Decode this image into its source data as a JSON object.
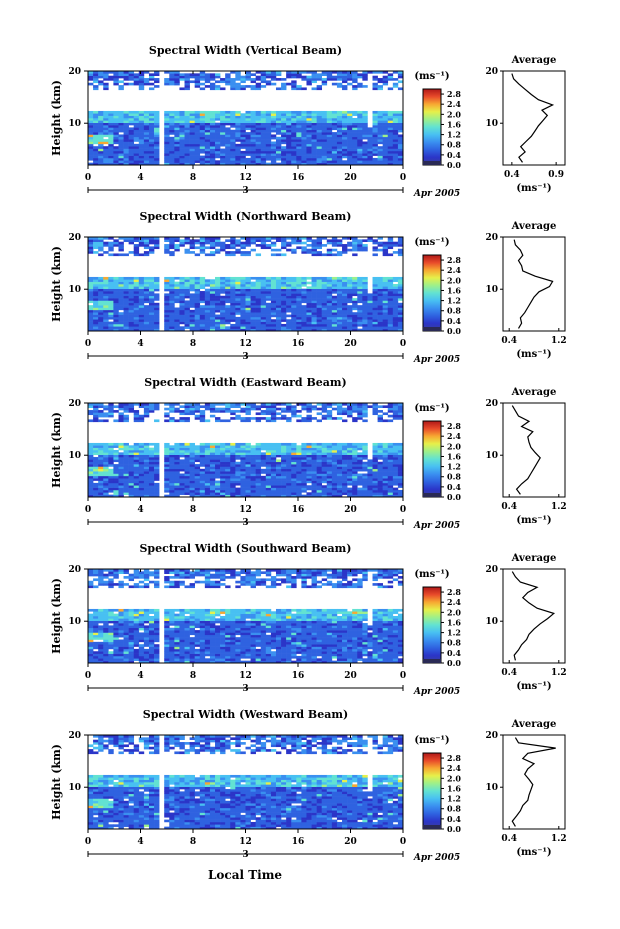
{
  "figure": {
    "xlabel": "Local Time",
    "date_label": "Apr 2005",
    "date_marker": "3",
    "cbar_unit": "(ms⁻¹)",
    "avg_title": "Average",
    "avg_unit": "(ms⁻¹)",
    "ylabel": "Height (km)"
  },
  "colors": {
    "scale": [
      "#3b3f9a",
      "#2b35c8",
      "#2f62e0",
      "#3a8ff0",
      "#48c0f2",
      "#62e2d2",
      "#9ef08a",
      "#e6f04a",
      "#f7a832",
      "#e84a2a",
      "#b01818"
    ]
  },
  "chart_data": [
    {
      "type": "heatmap",
      "title": "Spectral Width (Vertical Beam)",
      "x_ticks": [
        "0",
        "4",
        "8",
        "12",
        "16",
        "20",
        "0"
      ],
      "xlim": [
        0,
        24
      ],
      "y_ticks": [
        "10",
        "20"
      ],
      "ylim": [
        2,
        20
      ],
      "colorbar_ticks": [
        "0.0",
        "0.4",
        "0.8",
        "1.2",
        "1.6",
        "2.0",
        "2.4",
        "2.8"
      ],
      "colorbar_range": [
        0,
        3.0
      ],
      "average": {
        "x_ticks": [
          "0.4",
          "0.9"
        ],
        "xlim": [
          0.3,
          1.0
        ],
        "profile": [
          [
            2.5,
            0.52
          ],
          [
            3.5,
            0.48
          ],
          [
            4.5,
            0.55
          ],
          [
            5.5,
            0.5
          ],
          [
            6.5,
            0.56
          ],
          [
            7.5,
            0.62
          ],
          [
            8.5,
            0.66
          ],
          [
            9.5,
            0.7
          ],
          [
            10.5,
            0.75
          ],
          [
            11.5,
            0.8
          ],
          [
            12.5,
            0.74
          ],
          [
            13.5,
            0.86
          ],
          [
            14.5,
            0.7
          ],
          [
            15.5,
            0.62
          ],
          [
            16.5,
            0.55
          ],
          [
            17.5,
            0.48
          ],
          [
            18.5,
            0.42
          ],
          [
            19.5,
            0.4
          ]
        ]
      }
    },
    {
      "type": "heatmap",
      "title": "Spectral Width (Northward Beam)",
      "x_ticks": [
        "0",
        "4",
        "8",
        "12",
        "16",
        "20",
        "0"
      ],
      "xlim": [
        0,
        24
      ],
      "y_ticks": [
        "10",
        "20"
      ],
      "ylim": [
        2,
        20
      ],
      "colorbar_ticks": [
        "0.0",
        "0.4",
        "0.8",
        "1.2",
        "1.6",
        "2.0",
        "2.4",
        "2.8"
      ],
      "colorbar_range": [
        0,
        3.0
      ],
      "average": {
        "x_ticks": [
          "0.4",
          "1.2"
        ],
        "xlim": [
          0.3,
          1.3
        ],
        "profile": [
          [
            2.5,
            0.55
          ],
          [
            3.5,
            0.6
          ],
          [
            4.5,
            0.58
          ],
          [
            5.5,
            0.65
          ],
          [
            6.5,
            0.7
          ],
          [
            7.5,
            0.75
          ],
          [
            8.5,
            0.8
          ],
          [
            9.5,
            0.88
          ],
          [
            10.5,
            1.05
          ],
          [
            11.5,
            1.1
          ],
          [
            12.5,
            0.82
          ],
          [
            13.5,
            0.62
          ],
          [
            14.5,
            0.6
          ],
          [
            15.5,
            0.55
          ],
          [
            16.5,
            0.62
          ],
          [
            17.5,
            0.58
          ],
          [
            18.5,
            0.5
          ],
          [
            19.5,
            0.48
          ]
        ]
      }
    },
    {
      "type": "heatmap",
      "title": "Spectral Width (Eastward Beam)",
      "x_ticks": [
        "0",
        "4",
        "8",
        "12",
        "16",
        "20",
        "0"
      ],
      "xlim": [
        0,
        24
      ],
      "y_ticks": [
        "10",
        "20"
      ],
      "ylim": [
        2,
        20
      ],
      "colorbar_ticks": [
        "0.0",
        "0.4",
        "0.8",
        "1.2",
        "1.6",
        "2.0",
        "2.4",
        "2.8"
      ],
      "colorbar_range": [
        0,
        3.0
      ],
      "average": {
        "x_ticks": [
          "0.4",
          "1.2"
        ],
        "xlim": [
          0.3,
          1.3
        ],
        "profile": [
          [
            2.5,
            0.58
          ],
          [
            3.5,
            0.52
          ],
          [
            4.5,
            0.6
          ],
          [
            5.5,
            0.7
          ],
          [
            6.5,
            0.75
          ],
          [
            7.5,
            0.8
          ],
          [
            8.5,
            0.85
          ],
          [
            9.5,
            0.9
          ],
          [
            10.5,
            0.82
          ],
          [
            11.5,
            0.75
          ],
          [
            12.5,
            0.72
          ],
          [
            13.5,
            0.7
          ],
          [
            14.5,
            0.78
          ],
          [
            15.5,
            0.6
          ],
          [
            16.5,
            0.72
          ],
          [
            17.5,
            0.55
          ],
          [
            18.5,
            0.5
          ],
          [
            19.5,
            0.45
          ]
        ]
      }
    },
    {
      "type": "heatmap",
      "title": "Spectral Width (Southward Beam)",
      "x_ticks": [
        "0",
        "4",
        "8",
        "12",
        "16",
        "20",
        "0"
      ],
      "xlim": [
        0,
        24
      ],
      "y_ticks": [
        "10",
        "20"
      ],
      "ylim": [
        2,
        20
      ],
      "colorbar_ticks": [
        "0.0",
        "0.4",
        "0.8",
        "1.2",
        "1.6",
        "2.0",
        "2.4",
        "2.8"
      ],
      "colorbar_range": [
        0,
        3.0
      ],
      "average": {
        "x_ticks": [
          "0.4",
          "1.2"
        ],
        "xlim": [
          0.3,
          1.3
        ],
        "profile": [
          [
            2.5,
            0.5
          ],
          [
            3.5,
            0.48
          ],
          [
            4.5,
            0.55
          ],
          [
            5.5,
            0.6
          ],
          [
            6.5,
            0.68
          ],
          [
            7.5,
            0.72
          ],
          [
            8.5,
            0.8
          ],
          [
            9.5,
            0.9
          ],
          [
            10.5,
            1.02
          ],
          [
            11.5,
            1.12
          ],
          [
            12.5,
            0.85
          ],
          [
            13.5,
            0.72
          ],
          [
            14.5,
            0.62
          ],
          [
            15.5,
            0.7
          ],
          [
            16.5,
            0.85
          ],
          [
            17.5,
            0.58
          ],
          [
            18.5,
            0.5
          ],
          [
            19.5,
            0.45
          ]
        ]
      }
    },
    {
      "type": "heatmap",
      "title": "Spectral Width (Westward Beam)",
      "x_ticks": [
        "0",
        "4",
        "8",
        "12",
        "16",
        "20",
        "0"
      ],
      "xlim": [
        0,
        24
      ],
      "y_ticks": [
        "10",
        "20"
      ],
      "ylim": [
        2,
        20
      ],
      "colorbar_ticks": [
        "0.0",
        "0.4",
        "0.8",
        "1.2",
        "1.6",
        "2.0",
        "2.4",
        "2.8"
      ],
      "colorbar_range": [
        0,
        3.0
      ],
      "average": {
        "x_ticks": [
          "0.4",
          "1.2"
        ],
        "xlim": [
          0.3,
          1.3
        ],
        "profile": [
          [
            2.5,
            0.5
          ],
          [
            3.5,
            0.45
          ],
          [
            4.5,
            0.52
          ],
          [
            5.5,
            0.58
          ],
          [
            6.5,
            0.62
          ],
          [
            7.5,
            0.7
          ],
          [
            8.5,
            0.72
          ],
          [
            9.5,
            0.75
          ],
          [
            10.5,
            0.78
          ],
          [
            11.5,
            0.72
          ],
          [
            12.5,
            0.65
          ],
          [
            13.5,
            0.7
          ],
          [
            14.5,
            0.8
          ],
          [
            15.5,
            0.62
          ],
          [
            16.5,
            0.7
          ],
          [
            17.5,
            1.15
          ],
          [
            18.5,
            0.55
          ],
          [
            19.5,
            0.5
          ]
        ]
      }
    }
  ]
}
